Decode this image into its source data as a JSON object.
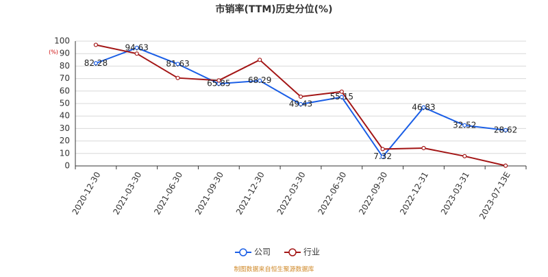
{
  "chart_data": {
    "type": "line",
    "title": "市销率(TTM)历史分位(%)",
    "y_label": "(%)",
    "source": "制图数据来自恒生聚源数据库",
    "categories": [
      "2020-12-30",
      "2021-03-30",
      "2021-06-30",
      "2021-09-30",
      "2021-12-30",
      "2022-03-30",
      "2022-06-30",
      "2022-09-30",
      "2022-12-31",
      "2023-03-31",
      "2023-07-13E"
    ],
    "series": [
      {
        "name": "公司",
        "color": "#1a5ee6",
        "values": [
          82.28,
          94.63,
          81.63,
          65.85,
          68.29,
          49.43,
          55.15,
          7.32,
          46.83,
          32.52,
          28.62
        ]
      },
      {
        "name": "行业",
        "color": "#a31515",
        "values": [
          97,
          90,
          70.5,
          68.5,
          85,
          55.5,
          59.5,
          13.5,
          14.3,
          7.8,
          0.2
        ]
      }
    ],
    "ylim": [
      0,
      100
    ],
    "yticks": [
      0,
      10,
      20,
      30,
      40,
      50,
      60,
      70,
      80,
      90,
      100
    ],
    "grid": true
  }
}
